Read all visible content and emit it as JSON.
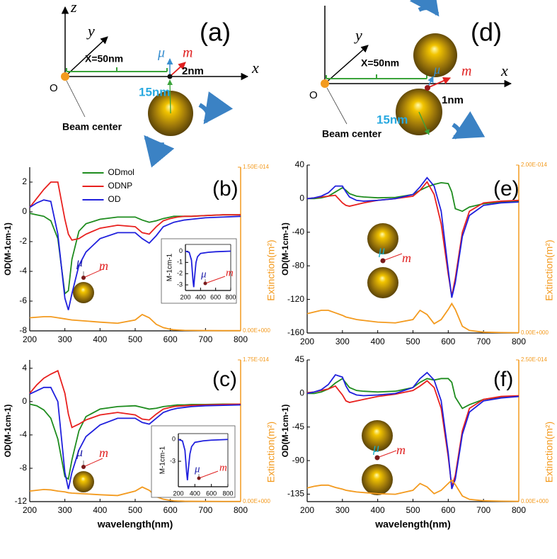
{
  "diagrams": [
    {
      "label": "(a)",
      "z": "z",
      "y": "y",
      "x": "x",
      "origin": "O",
      "distance": "X=50nm",
      "mu": "μ⃗",
      "m": "m⃗",
      "gap": "2nm",
      "radius": "15nm",
      "beam": "Beam center"
    },
    {
      "label": "(d)",
      "y": "y",
      "x": "x",
      "origin": "O",
      "distance": "X=50nm",
      "mu": "μ⃗",
      "m": "m⃗",
      "gap": "1nm",
      "radius": "15nm",
      "beam": "Beam center"
    }
  ],
  "chart_data": [
    {
      "type": "line",
      "label": "(b)",
      "ylabel": "OD(M-1cm-1)",
      "y2label": "Extinction(m²)",
      "legend": "upper center",
      "x": [
        200,
        220,
        240,
        260,
        280,
        300,
        310,
        320,
        340,
        360,
        400,
        450,
        500,
        520,
        540,
        560,
        580,
        600,
        610,
        620,
        640,
        660,
        700,
        750,
        800
      ],
      "series": [
        {
          "name": "ODmol",
          "color": "#1e8c1e",
          "values": [
            -0.1,
            -0.2,
            -0.3,
            -0.6,
            -1.8,
            -5.5,
            -5.3,
            -3.2,
            -1.3,
            -0.8,
            -0.5,
            -0.35,
            -0.35,
            -0.55,
            -0.7,
            -0.6,
            -0.45,
            -0.35,
            -0.3,
            -0.3,
            -0.3,
            -0.3,
            -0.25,
            -0.2,
            -0.2
          ]
        },
        {
          "name": "ODNP",
          "color": "#e8201e",
          "values": [
            0.3,
            0.9,
            1.5,
            2.0,
            2.0,
            -0.5,
            -1.5,
            -1.9,
            -1.8,
            -1.5,
            -1.1,
            -0.9,
            -1.0,
            -1.4,
            -1.5,
            -1.0,
            -0.6,
            -0.45,
            -0.4,
            -0.35,
            -0.3,
            -0.3,
            -0.25,
            -0.2,
            -0.2
          ]
        },
        {
          "name": "OD",
          "color": "#2020dd",
          "values": [
            0.3,
            0.6,
            0.8,
            0.7,
            -1.5,
            -5.8,
            -6.6,
            -5.5,
            -3.6,
            -2.7,
            -1.8,
            -1.4,
            -1.4,
            -1.8,
            -2.1,
            -1.6,
            -1.0,
            -0.8,
            -0.7,
            -0.65,
            -0.55,
            -0.5,
            -0.4,
            -0.35,
            -0.3
          ]
        },
        {
          "color": "#f39a1e",
          "axis": "y2",
          "values": [
            1.2e-15,
            1.25e-15,
            1.3e-15,
            1.3e-15,
            1.2e-15,
            1.1e-15,
            1.05e-15,
            1e-15,
            9.5e-16,
            9e-16,
            8e-16,
            7e-16,
            1e-15,
            1.5e-15,
            1.2e-15,
            6e-16,
            3e-16,
            1.5e-16,
            1e-16,
            8e-17,
            5e-17,
            4e-17,
            3e-17,
            2e-17,
            2e-17
          ]
        }
      ],
      "xlim": [
        200,
        800
      ],
      "xticks": [
        200,
        300,
        400,
        500,
        600,
        700,
        800
      ],
      "ylim": [
        -8,
        3
      ],
      "yticks": [
        -8,
        -6,
        -4,
        -2,
        0,
        2
      ],
      "y2lim": [
        0,
        1.5e-14
      ],
      "y2ticks": [
        {
          "value": 0,
          "label": "0.00E+000"
        },
        {
          "value": 1.5e-14,
          "label": "1.50E-014"
        }
      ],
      "annotations": [
        "μ⃗",
        "m⃗"
      ]
    },
    {
      "type": "line",
      "label": "(c)",
      "xlabel": "wavelength(nm)",
      "ylabel": "OD(M-1cm-1)",
      "y2label": "Extinction(m²)",
      "x": [
        200,
        220,
        240,
        260,
        280,
        300,
        310,
        320,
        340,
        360,
        400,
        450,
        500,
        520,
        540,
        560,
        580,
        600,
        610,
        620,
        640,
        660,
        700,
        750,
        800
      ],
      "series": [
        {
          "color": "#1e8c1e",
          "values": [
            -0.3,
            -0.5,
            -1.0,
            -2.0,
            -4.5,
            -9.0,
            -9.3,
            -7.0,
            -3.5,
            -1.8,
            -0.9,
            -0.6,
            -0.5,
            -0.7,
            -0.9,
            -0.8,
            -0.6,
            -0.5,
            -0.45,
            -0.4,
            -0.4,
            -0.35,
            -0.35,
            -0.3,
            -0.3
          ]
        },
        {
          "color": "#e8201e",
          "values": [
            1.0,
            2.0,
            2.8,
            3.3,
            3.7,
            1.0,
            -1.5,
            -3.1,
            -2.7,
            -2.2,
            -1.6,
            -1.3,
            -1.6,
            -2.1,
            -2.2,
            -1.5,
            -0.9,
            -0.7,
            -0.6,
            -0.55,
            -0.5,
            -0.45,
            -0.4,
            -0.35,
            -0.3
          ]
        },
        {
          "color": "#2020dd",
          "values": [
            0.9,
            1.3,
            1.7,
            1.7,
            0.0,
            -8.5,
            -10.5,
            -8.5,
            -5.8,
            -4.2,
            -2.8,
            -2.0,
            -2.0,
            -2.5,
            -2.7,
            -2.0,
            -1.3,
            -1.0,
            -0.9,
            -0.8,
            -0.7,
            -0.6,
            -0.5,
            -0.45,
            -0.4
          ]
        },
        {
          "color": "#f39a1e",
          "axis": "y2",
          "values": [
            1.3e-15,
            1.4e-15,
            1.5e-15,
            1.45e-15,
            1.3e-15,
            1.2e-15,
            1.1e-15,
            1.05e-15,
            1e-15,
            9.5e-16,
            8.5e-16,
            7.5e-16,
            1.3e-15,
            1.8e-15,
            1.4e-15,
            6e-16,
            3e-16,
            1.5e-16,
            1e-16,
            8e-17,
            5e-17,
            4e-17,
            3e-17,
            2e-17,
            2e-17
          ]
        }
      ],
      "xlim": [
        200,
        800
      ],
      "xticks": [
        200,
        300,
        400,
        500,
        600,
        700,
        800
      ],
      "ylim": [
        -12,
        5
      ],
      "yticks": [
        -12,
        -8,
        -4,
        0,
        4
      ],
      "y2lim": [
        0,
        1.75e-14
      ],
      "y2ticks": [
        {
          "value": 0,
          "label": "0.00E+000"
        },
        {
          "value": 1.75e-14,
          "label": "1.75E-014"
        }
      ],
      "annotations": [
        "μ⃗",
        "m⃗"
      ]
    },
    {
      "type": "line",
      "label": "(e)",
      "ylabel": "OD(M-1cm-1)",
      "y2label": "Extinction(m²)",
      "x": [
        200,
        220,
        240,
        260,
        280,
        300,
        310,
        320,
        340,
        360,
        400,
        450,
        500,
        520,
        540,
        560,
        580,
        600,
        610,
        620,
        640,
        660,
        700,
        750,
        800
      ],
      "series": [
        {
          "color": "#1e8c1e",
          "values": [
            0,
            0,
            1,
            3,
            8,
            13,
            10,
            6,
            3,
            2,
            1,
            1.5,
            5,
            10,
            14,
            17,
            19,
            18,
            8,
            -12,
            -15,
            -10,
            -6,
            -4,
            -3
          ]
        },
        {
          "color": "#e8201e",
          "values": [
            0,
            1,
            2,
            3,
            4,
            -5,
            -8,
            -9,
            -7,
            -5,
            -2,
            0,
            3,
            10,
            20,
            5,
            -30,
            -90,
            -116,
            -95,
            -40,
            -15,
            -5,
            -3,
            -2
          ]
        },
        {
          "color": "#2020dd",
          "values": [
            0,
            1,
            3,
            7,
            15,
            15,
            8,
            2,
            -2,
            -3,
            -2,
            0,
            5,
            14,
            25,
            15,
            -15,
            -85,
            -118,
            -100,
            -45,
            -20,
            -8,
            -5,
            -4
          ]
        },
        {
          "color": "#f39a1e",
          "axis": "y2",
          "values": [
            2.3e-15,
            2.5e-15,
            2.7e-15,
            2.7e-15,
            2.4e-15,
            2.1e-15,
            1.9e-15,
            1.8e-15,
            1.6e-15,
            1.5e-15,
            1.3e-15,
            1.2e-15,
            1.6e-15,
            2.7e-15,
            2.2e-15,
            1.1e-15,
            1.6e-15,
            2.8e-15,
            3.5e-15,
            2.8e-15,
            8e-16,
            3e-16,
            1e-16,
            5e-17,
            3e-17
          ]
        }
      ],
      "xlim": [
        200,
        800
      ],
      "xticks": [
        200,
        300,
        400,
        500,
        600,
        700,
        800
      ],
      "ylim": [
        -160,
        40
      ],
      "yticks": [
        -160,
        -120,
        -80,
        -40,
        0,
        40
      ],
      "y2lim": [
        0,
        2e-14
      ],
      "y2ticks": [
        {
          "value": 0,
          "label": "0.00E+000"
        },
        {
          "value": 2e-14,
          "label": "2.00E-014"
        }
      ],
      "annotations": [
        "μ⃗",
        "m⃗"
      ]
    },
    {
      "type": "line",
      "label": "(f)",
      "xlabel": "wavelength(nm)",
      "ylabel": "OD(M-1cm-1)",
      "y2label": "Extinction(m²)",
      "x": [
        200,
        220,
        240,
        260,
        280,
        300,
        310,
        320,
        340,
        360,
        400,
        450,
        500,
        520,
        540,
        560,
        580,
        600,
        610,
        620,
        640,
        660,
        700,
        750,
        800
      ],
      "series": [
        {
          "color": "#1e8c1e",
          "values": [
            0,
            0,
            2,
            6,
            14,
            20,
            14,
            8,
            4,
            3,
            2,
            3,
            8,
            15,
            20,
            18,
            20,
            20,
            15,
            -5,
            -20,
            -15,
            -8,
            -5,
            -4
          ]
        },
        {
          "color": "#e8201e",
          "values": [
            1,
            2,
            4,
            6,
            10,
            -2,
            -10,
            -12,
            -10,
            -8,
            -4,
            -1,
            4,
            10,
            17,
            8,
            -20,
            -85,
            -125,
            -110,
            -50,
            -20,
            -8,
            -4,
            -3
          ]
        },
        {
          "color": "#2020dd",
          "values": [
            0,
            2,
            5,
            12,
            25,
            22,
            10,
            2,
            -2,
            -3,
            -2,
            0,
            8,
            20,
            28,
            18,
            -10,
            -80,
            -128,
            -115,
            -55,
            -25,
            -10,
            -6,
            -4
          ]
        },
        {
          "color": "#f39a1e",
          "axis": "y2",
          "values": [
            2.4e-15,
            2.7e-15,
            2.9e-15,
            2.9e-15,
            2.5e-15,
            2.2e-15,
            2e-15,
            1.9e-15,
            1.7e-15,
            1.6e-15,
            1.4e-15,
            1.3e-15,
            2e-15,
            3.2e-15,
            2.6e-15,
            1.4e-15,
            2e-15,
            3.2e-15,
            3.8e-15,
            3e-15,
            1e-15,
            4e-16,
            1.5e-16,
            8e-17,
            5e-17
          ]
        }
      ],
      "xlim": [
        200,
        800
      ],
      "xticks": [
        200,
        300,
        400,
        500,
        600,
        700,
        800
      ],
      "ylim": [
        -145,
        45
      ],
      "yticks": [
        -135,
        -90,
        -45,
        0,
        45
      ],
      "y2lim": [
        0,
        2.5e-14
      ],
      "y2ticks": [
        {
          "value": 0,
          "label": "0.00E+000"
        },
        {
          "value": 2.5e-14,
          "label": "2.50E-014"
        }
      ],
      "annotations": [
        "μ⃗",
        "m⃗"
      ]
    },
    {
      "type": "line",
      "ylabel": "M-1cm-1",
      "x": [
        200,
        250,
        280,
        300,
        310,
        320,
        340,
        360,
        400,
        500,
        600,
        800
      ],
      "series": [
        {
          "color": "#2020dd",
          "values": [
            0,
            -0.1,
            -0.8,
            -2.6,
            -3.2,
            -2.4,
            -1.0,
            -0.5,
            -0.2,
            -0.1,
            -0.05,
            0
          ]
        }
      ],
      "xlim": [
        200,
        800
      ],
      "xticks": [
        200,
        400,
        600,
        800
      ],
      "ylim": [
        -3.5,
        0.6
      ],
      "yticks": [
        -3,
        -2,
        -1,
        0
      ],
      "annotations": [
        "μ⃗",
        "m⃗"
      ]
    },
    {
      "type": "line",
      "ylabel": "M-1cm-1",
      "x": [
        200,
        250,
        280,
        300,
        310,
        320,
        340,
        360,
        400,
        500,
        600,
        800
      ],
      "series": [
        {
          "color": "#2020dd",
          "values": [
            0,
            -0.2,
            -1.5,
            -4.5,
            -5.6,
            -4.2,
            -2.0,
            -1.0,
            -0.4,
            -0.2,
            -0.1,
            0
          ]
        }
      ],
      "xlim": [
        200,
        800
      ],
      "xticks": [
        200,
        400,
        600,
        800
      ],
      "ylim": [
        -6.5,
        0.8
      ],
      "yticks": [
        -3,
        0
      ],
      "annotations": [
        "μ⃗",
        "m⃗"
      ]
    }
  ]
}
